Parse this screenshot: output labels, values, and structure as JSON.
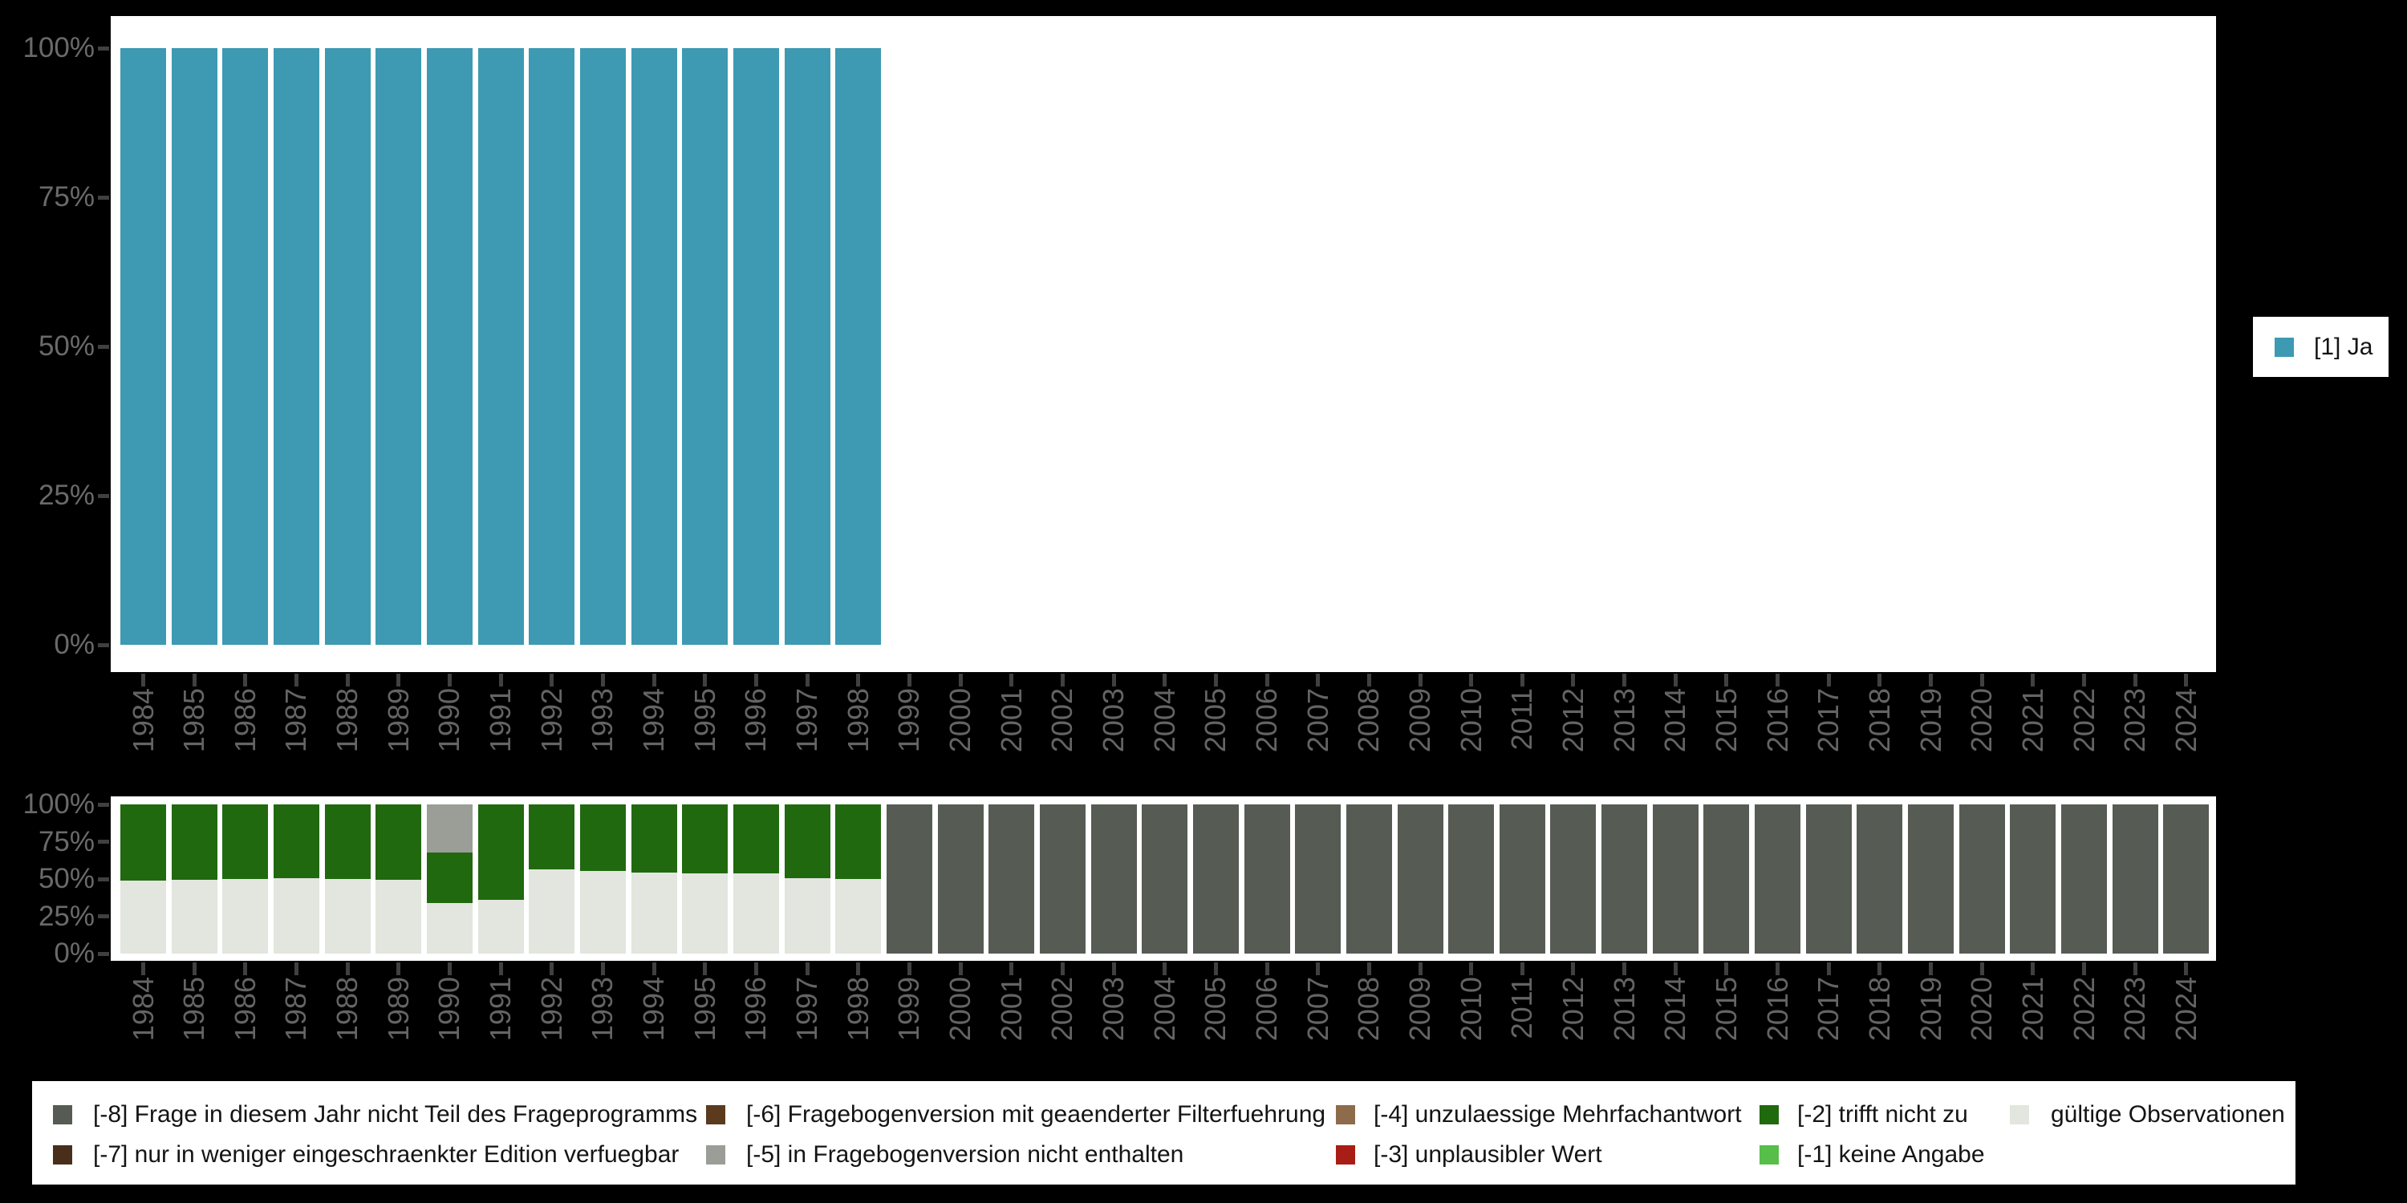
{
  "colors": {
    "background": "#000000",
    "panel": "#ffffff",
    "axis_tick": "#404040",
    "axis_label": "#6a6a6a",
    "legend_text": "#141414",
    "ja_teal": "#3D9AB2",
    "valid_gray": "#E2E6DE",
    "m2_darkgreen": "#20690F",
    "m5_gray": "#9B9E97",
    "m8_olivegray": "#565C53",
    "m7_darkbrown": "#4A2E1C",
    "m6_brown": "#5C3A1E",
    "m4_tan": "#8E6C4B",
    "m3_red": "#A81D15",
    "m1_lightgreen": "#56BE49"
  },
  "years": [
    "1984",
    "1985",
    "1986",
    "1987",
    "1988",
    "1989",
    "1990",
    "1991",
    "1992",
    "1993",
    "1994",
    "1995",
    "1996",
    "1997",
    "1998",
    "1999",
    "2000",
    "2001",
    "2002",
    "2003",
    "2004",
    "2005",
    "2006",
    "2007",
    "2008",
    "2009",
    "2010",
    "2011",
    "2012",
    "2013",
    "2014",
    "2015",
    "2016",
    "2017",
    "2018",
    "2019",
    "2020",
    "2021",
    "2022",
    "2023",
    "2024"
  ],
  "y_ticks": [
    "100%",
    "75%",
    "50%",
    "25%",
    "0%"
  ],
  "legend_top": {
    "label": "[1] Ja",
    "color": "#3D9AB2"
  },
  "legend_bottom": {
    "items": [
      {
        "label": "[-8] Frage in diesem Jahr nicht Teil des Frageprogramms",
        "color": "#565C53",
        "row": 0,
        "col": 0
      },
      {
        "label": "[-7] nur in weniger eingeschraenkter Edition verfuegbar",
        "color": "#4A2E1C",
        "row": 1,
        "col": 0
      },
      {
        "label": "[-6] Fragebogenversion mit geaenderter Filterfuehrung",
        "color": "#5C3A1E",
        "row": 0,
        "col": 1
      },
      {
        "label": "[-5] in Fragebogenversion nicht enthalten",
        "color": "#9B9E97",
        "row": 1,
        "col": 1
      },
      {
        "label": "[-4] unzulaessige Mehrfachantwort",
        "color": "#8E6C4B",
        "row": 0,
        "col": 2
      },
      {
        "label": "[-3] unplausibler Wert",
        "color": "#A81D15",
        "row": 1,
        "col": 2
      },
      {
        "label": "[-2] trifft nicht zu",
        "color": "#20690F",
        "row": 0,
        "col": 3
      },
      {
        "label": "[-1] keine Angabe",
        "color": "#56BE49",
        "row": 1,
        "col": 3
      },
      {
        "label": "gültige Observationen",
        "color": "#E2E6DE",
        "row": 0,
        "col": 4
      }
    ]
  },
  "chart_data": [
    {
      "type": "bar",
      "stacked": true,
      "title": "",
      "categories": [
        "1984",
        "1985",
        "1986",
        "1987",
        "1988",
        "1989",
        "1990",
        "1991",
        "1992",
        "1993",
        "1994",
        "1995",
        "1996",
        "1997",
        "1998",
        "1999",
        "2000",
        "2001",
        "2002",
        "2003",
        "2004",
        "2005",
        "2006",
        "2007",
        "2008",
        "2009",
        "2010",
        "2011",
        "2012",
        "2013",
        "2014",
        "2015",
        "2016",
        "2017",
        "2018",
        "2019",
        "2020",
        "2021",
        "2022",
        "2023",
        "2024"
      ],
      "ylabel": "",
      "ylim": [
        0,
        100
      ],
      "ytick_labels": [
        "0%",
        "25%",
        "50%",
        "75%",
        "100%"
      ],
      "grid": false,
      "legend_position": "right",
      "legend_entries": [
        "[1] Ja"
      ],
      "series": [
        {
          "name": "[1] Ja",
          "color": "#3D9AB2",
          "values": [
            100,
            100,
            100,
            100,
            100,
            100,
            100,
            100,
            100,
            100,
            100,
            100,
            100,
            100,
            100,
            0,
            0,
            0,
            0,
            0,
            0,
            0,
            0,
            0,
            0,
            0,
            0,
            0,
            0,
            0,
            0,
            0,
            0,
            0,
            0,
            0,
            0,
            0,
            0,
            0,
            0
          ]
        }
      ]
    },
    {
      "type": "bar",
      "stacked": true,
      "title": "",
      "categories": [
        "1984",
        "1985",
        "1986",
        "1987",
        "1988",
        "1989",
        "1990",
        "1991",
        "1992",
        "1993",
        "1994",
        "1995",
        "1996",
        "1997",
        "1998",
        "1999",
        "2000",
        "2001",
        "2002",
        "2003",
        "2004",
        "2005",
        "2006",
        "2007",
        "2008",
        "2009",
        "2010",
        "2011",
        "2012",
        "2013",
        "2014",
        "2015",
        "2016",
        "2017",
        "2018",
        "2019",
        "2020",
        "2021",
        "2022",
        "2023",
        "2024"
      ],
      "ylabel": "",
      "ylim": [
        0,
        100
      ],
      "ytick_labels": [
        "0%",
        "25%",
        "50%",
        "75%",
        "100%"
      ],
      "grid": false,
      "legend_position": "bottom",
      "legend_entries": [
        "[-8] Frage in diesem Jahr nicht Teil des Frageprogramms",
        "[-7] nur in weniger eingeschraenkter Edition verfuegbar",
        "[-6] Fragebogenversion mit geaenderter Filterfuehrung",
        "[-5] in Fragebogenversion nicht enthalten",
        "[-4] unzulaessige Mehrfachantwort",
        "[-3] unplausibler Wert",
        "[-2] trifft nicht zu",
        "[-1] keine Angabe",
        "gültige Observationen"
      ],
      "series": [
        {
          "name": "gültige Observationen",
          "color": "#E2E6DE",
          "values": [
            49,
            49.5,
            50,
            50.5,
            50,
            49.5,
            34,
            36,
            56.5,
            55.5,
            54.5,
            54,
            54,
            50.5,
            50,
            0,
            0,
            0,
            0,
            0,
            0,
            0,
            0,
            0,
            0,
            0,
            0,
            0,
            0,
            0,
            0,
            0,
            0,
            0,
            0,
            0,
            0,
            0,
            0,
            0,
            0
          ]
        },
        {
          "name": "[-2] trifft nicht zu",
          "color": "#20690F",
          "values": [
            51,
            50.5,
            50,
            49.5,
            50,
            50.5,
            34,
            64,
            43.5,
            44.5,
            45.5,
            46,
            46,
            49.5,
            50,
            0,
            0,
            0,
            0,
            0,
            0,
            0,
            0,
            0,
            0,
            0,
            0,
            0,
            0,
            0,
            0,
            0,
            0,
            0,
            0,
            0,
            0,
            0,
            0,
            0,
            0
          ]
        },
        {
          "name": "[-5] in Fragebogenversion nicht enthalten",
          "color": "#9B9E97",
          "values": [
            0,
            0,
            0,
            0,
            0,
            0,
            32,
            0,
            0,
            0,
            0,
            0,
            0,
            0,
            0,
            0,
            0,
            0,
            0,
            0,
            0,
            0,
            0,
            0,
            0,
            0,
            0,
            0,
            0,
            0,
            0,
            0,
            0,
            0,
            0,
            0,
            0,
            0,
            0,
            0,
            0
          ]
        },
        {
          "name": "[-8] Frage in diesem Jahr nicht Teil des Frageprogramms",
          "color": "#565C53",
          "values": [
            0,
            0,
            0,
            0,
            0,
            0,
            0,
            0,
            0,
            0,
            0,
            0,
            0,
            0,
            0,
            100,
            100,
            100,
            100,
            100,
            100,
            100,
            100,
            100,
            100,
            100,
            100,
            100,
            100,
            100,
            100,
            100,
            100,
            100,
            100,
            100,
            100,
            100,
            100,
            100,
            100
          ]
        }
      ]
    }
  ]
}
